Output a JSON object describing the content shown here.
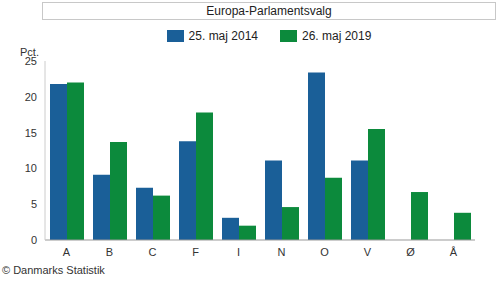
{
  "chart_data": {
    "type": "bar",
    "title": "Europa-Parlamentsvalg",
    "ylabel": "Pct.",
    "annotations": [
      "© Danmarks Statistik"
    ],
    "categories": [
      "A",
      "B",
      "C",
      "F",
      "I",
      "N",
      "O",
      "V",
      "Ø",
      "Å"
    ],
    "series": [
      {
        "name": "25. maj 2014",
        "color": "#1a5f98",
        "values": [
          21.8,
          9.1,
          7.3,
          13.8,
          3.1,
          11.1,
          23.4,
          11.1,
          null,
          null
        ]
      },
      {
        "name": "26. maj 2019",
        "color": "#0c8a3c",
        "values": [
          22.0,
          13.7,
          6.2,
          17.8,
          2.0,
          4.6,
          8.7,
          15.5,
          6.7,
          3.8
        ]
      }
    ],
    "ylim": [
      0,
      25
    ],
    "yticks": [
      0,
      5,
      10,
      15,
      20,
      25
    ],
    "grid": false,
    "legend": "top"
  }
}
